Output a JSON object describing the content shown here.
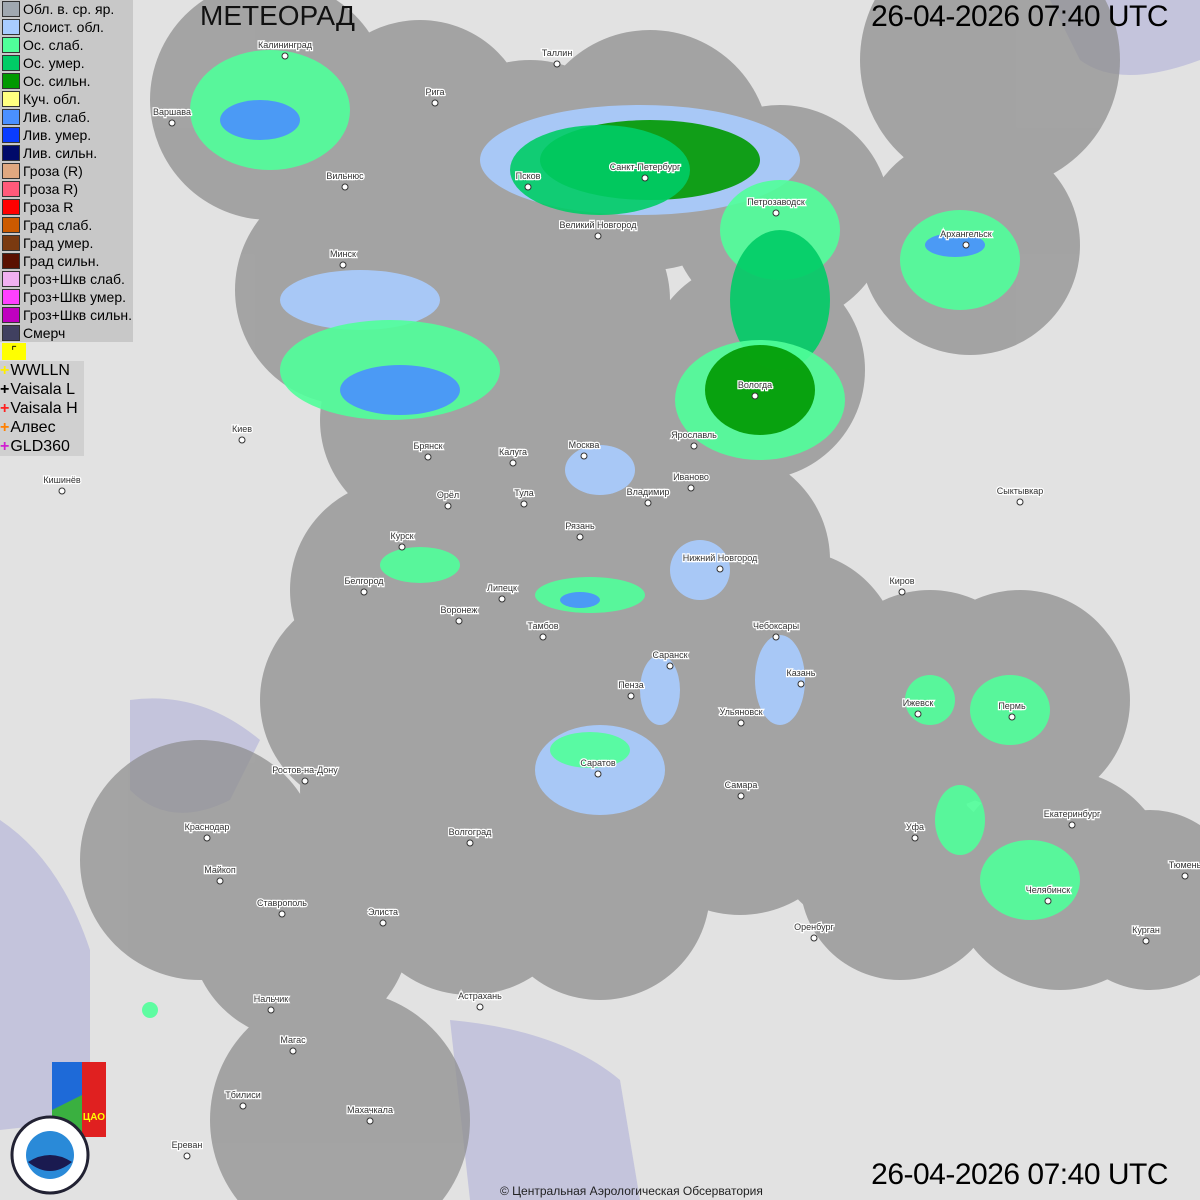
{
  "title": "МЕТЕОРАД",
  "timestamp_top": "26-04-2026  07:40 UTC",
  "timestamp_bottom": "26-04-2026  07:40 UTC",
  "copyright": "© Центральная Аэрологическая Обсерватория",
  "legend": [
    {
      "label": "Обл. в. ср. яр.",
      "color": "#a0a8b0"
    },
    {
      "label": "Слоист. обл.",
      "color": "#a8ccff"
    },
    {
      "label": "Ос. слаб.",
      "color": "#50ff9a"
    },
    {
      "label": "Ос. умер.",
      "color": "#00cc66"
    },
    {
      "label": "Ос. сильн.",
      "color": "#009900"
    },
    {
      "label": "Куч. обл.",
      "color": "#ffff80"
    },
    {
      "label": "Лив. слаб.",
      "color": "#4a90ff"
    },
    {
      "label": "Лив. умер.",
      "color": "#0a3cff"
    },
    {
      "label": "Лив. сильн.",
      "color": "#000a6a"
    },
    {
      "label": "Гроза (R)",
      "color": "#e0a880"
    },
    {
      "label": "Гроза R)",
      "color": "#ff5a7a"
    },
    {
      "label": "Гроза R",
      "color": "#ff0000"
    },
    {
      "label": "Град слаб.",
      "color": "#cc5a00"
    },
    {
      "label": "Град умер.",
      "color": "#7a3a10"
    },
    {
      "label": "Град сильн.",
      "color": "#5a1000"
    },
    {
      "label": "Гроз+Шкв слаб.",
      "color": "#f0b0f0"
    },
    {
      "label": "Гроз+Шкв умер.",
      "color": "#ff40ff"
    },
    {
      "label": "Гроз+Шкв сильн.",
      "color": "#c000c0"
    },
    {
      "label": "Смерч",
      "color": "#404060"
    }
  ],
  "flag_icon": "flag-icon",
  "lightning_networks": [
    {
      "label": "WWLLN",
      "color": "#ffee00"
    },
    {
      "label": "Vaisala L",
      "color": "#000000"
    },
    {
      "label": "Vaisala H",
      "color": "#ff2020"
    },
    {
      "label": "Алвес",
      "color": "#ff8000"
    },
    {
      "label": "GLD360",
      "color": "#d020d0"
    }
  ],
  "cities": [
    "Калининград",
    "Таллин",
    "Рига",
    "Варшава",
    "Вильнюс",
    "Псков",
    "Санкт-Петербург",
    "Петрозаводск",
    "Великий Новгород",
    "Архангельск",
    "Минск",
    "Вологда",
    "Киев",
    "Брянск",
    "Калуга",
    "Москва",
    "Ярославль",
    "Иваново",
    "Кишинёв",
    "Орёл",
    "Тула",
    "Владимир",
    "Сыктывкар",
    "Рязань",
    "Курск",
    "Нижний Новгород",
    "Белгород",
    "Киров",
    "Липецк",
    "Воронеж",
    "Тамбов",
    "Чебоксары",
    "Саранск",
    "Казань",
    "Пенза",
    "Ижевск",
    "Пермь",
    "Ульяновск",
    "Саратов",
    "Ростов-на-Дону",
    "Самара",
    "Краснодар",
    "Уфа",
    "Екатеринбург",
    "Волгоград",
    "Тюмень",
    "Майкоп",
    "Челябинск",
    "Ставрополь",
    "Элиста",
    "Оренбург",
    "Курган",
    "Астрахань",
    "Нальчик",
    "Магас",
    "Тбилиси",
    "Махачкала",
    "Ереван"
  ],
  "logos": {
    "cao": "ЦАО 1941",
    "roshydromet": "РОСГИДРОМЕТ ROSHYDROMET"
  }
}
